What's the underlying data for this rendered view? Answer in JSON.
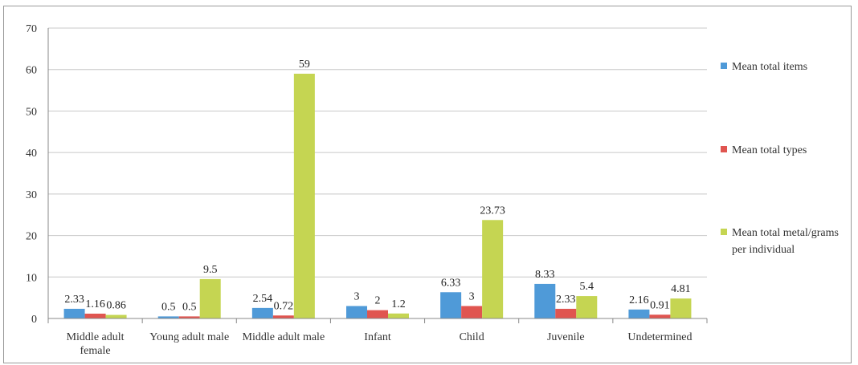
{
  "chart_data": {
    "type": "bar",
    "title": "",
    "xlabel": "",
    "ylabel": "",
    "ylim": [
      0,
      70
    ],
    "yticks": [
      0,
      10,
      20,
      30,
      40,
      50,
      60,
      70
    ],
    "grid": true,
    "legend_position": "right",
    "categories": [
      "Middle adult female",
      "Young adult male",
      "Middle adult male",
      "Infant",
      "Child",
      "Juvenile",
      "Undetermined"
    ],
    "category_label_lines": [
      [
        "Middle adult",
        "female"
      ],
      [
        "Young adult male"
      ],
      [
        "Middle adult male"
      ],
      [
        "Infant"
      ],
      [
        "Child"
      ],
      [
        "Juvenile"
      ],
      [
        "Undetermined"
      ]
    ],
    "series": [
      {
        "name": "Mean total items",
        "legend_lines": [
          "Mean total items"
        ],
        "color": "#4f9ad8",
        "values": [
          2.33,
          0.5,
          2.54,
          3,
          6.33,
          8.33,
          2.16
        ],
        "labels": [
          "2.33",
          "0.5",
          "2.54",
          "3",
          "6.33",
          "8.33",
          "2.16"
        ]
      },
      {
        "name": "Mean total types",
        "legend_lines": [
          "Mean total types"
        ],
        "color": "#e05550",
        "values": [
          1.16,
          0.5,
          0.72,
          2,
          3,
          2.33,
          0.91
        ],
        "labels": [
          "1.16",
          "0.5",
          "0.72",
          "2",
          "3",
          "2.33",
          "0.91"
        ]
      },
      {
        "name": "Mean total metal/grams per individual",
        "legend_lines": [
          "Mean total metal/grams",
          "per individual"
        ],
        "color": "#c5d552",
        "values": [
          0.86,
          9.5,
          59,
          1.2,
          23.73,
          5.4,
          4.81
        ],
        "labels": [
          "0.86",
          "9.5",
          "59",
          "1.2",
          "23.73",
          "5.4",
          "4.81"
        ]
      }
    ]
  }
}
